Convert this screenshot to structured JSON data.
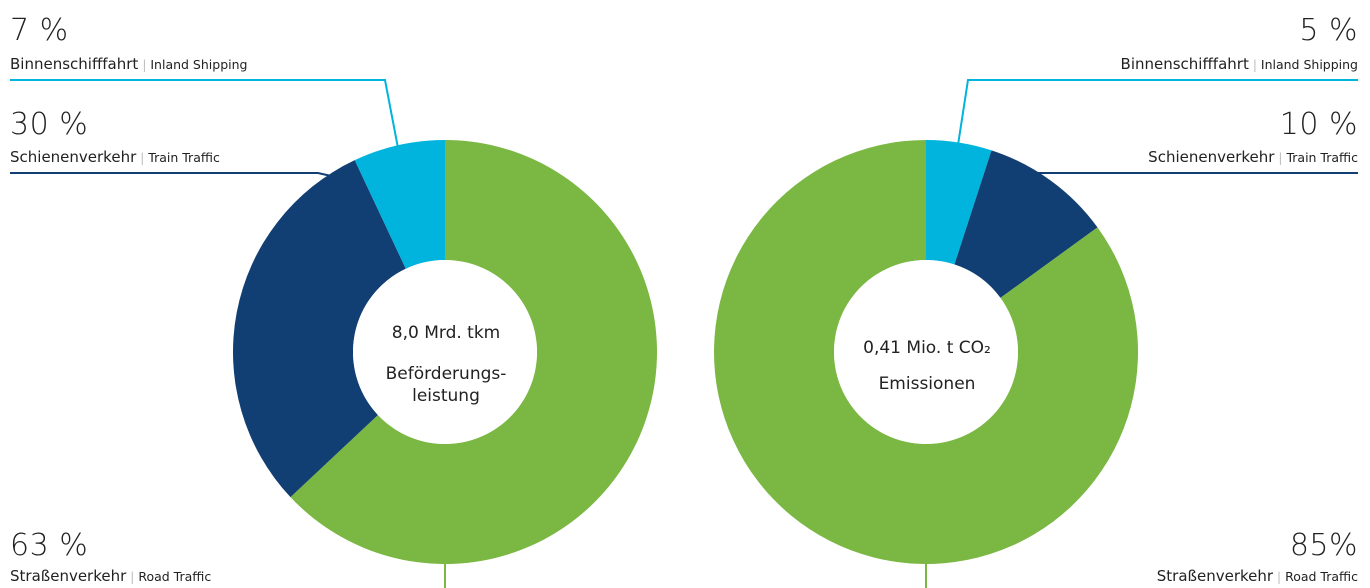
{
  "colors": {
    "road": "#7bb743",
    "train": "#123f73",
    "inland": "#00b4dd"
  },
  "chart_data": [
    {
      "type": "pie",
      "title": "",
      "center_value": "8,0 Mrd. tkm",
      "center_label": "Beförderungs-\nleistung",
      "slices": [
        {
          "key": "road",
          "value": 63,
          "pct_label": "63 %",
          "label_de": "Straßenverkehr",
          "label_en": "Road Traffic"
        },
        {
          "key": "train",
          "value": 30,
          "pct_label": "30 %",
          "label_de": "Schienenverkehr",
          "label_en": "Train Traffic"
        },
        {
          "key": "inland",
          "value": 7,
          "pct_label": "7 %",
          "label_de": "Binnenschifffahrt",
          "label_en": "Inland Shipping"
        }
      ]
    },
    {
      "type": "pie",
      "title": "",
      "center_value": "0,41 Mio. t CO₂",
      "center_label": "Emissionen",
      "slices": [
        {
          "key": "road",
          "value": 85,
          "pct_label": "85%",
          "label_de": "Straßenverkehr",
          "label_en": "Road Traffic"
        },
        {
          "key": "train",
          "value": 10,
          "pct_label": "10 %",
          "label_de": "Schienenverkehr",
          "label_en": "Train Traffic"
        },
        {
          "key": "inland",
          "value": 5,
          "pct_label": "5 %",
          "label_de": "Binnenschifffahrt",
          "label_en": "Inland Shipping"
        }
      ]
    }
  ]
}
